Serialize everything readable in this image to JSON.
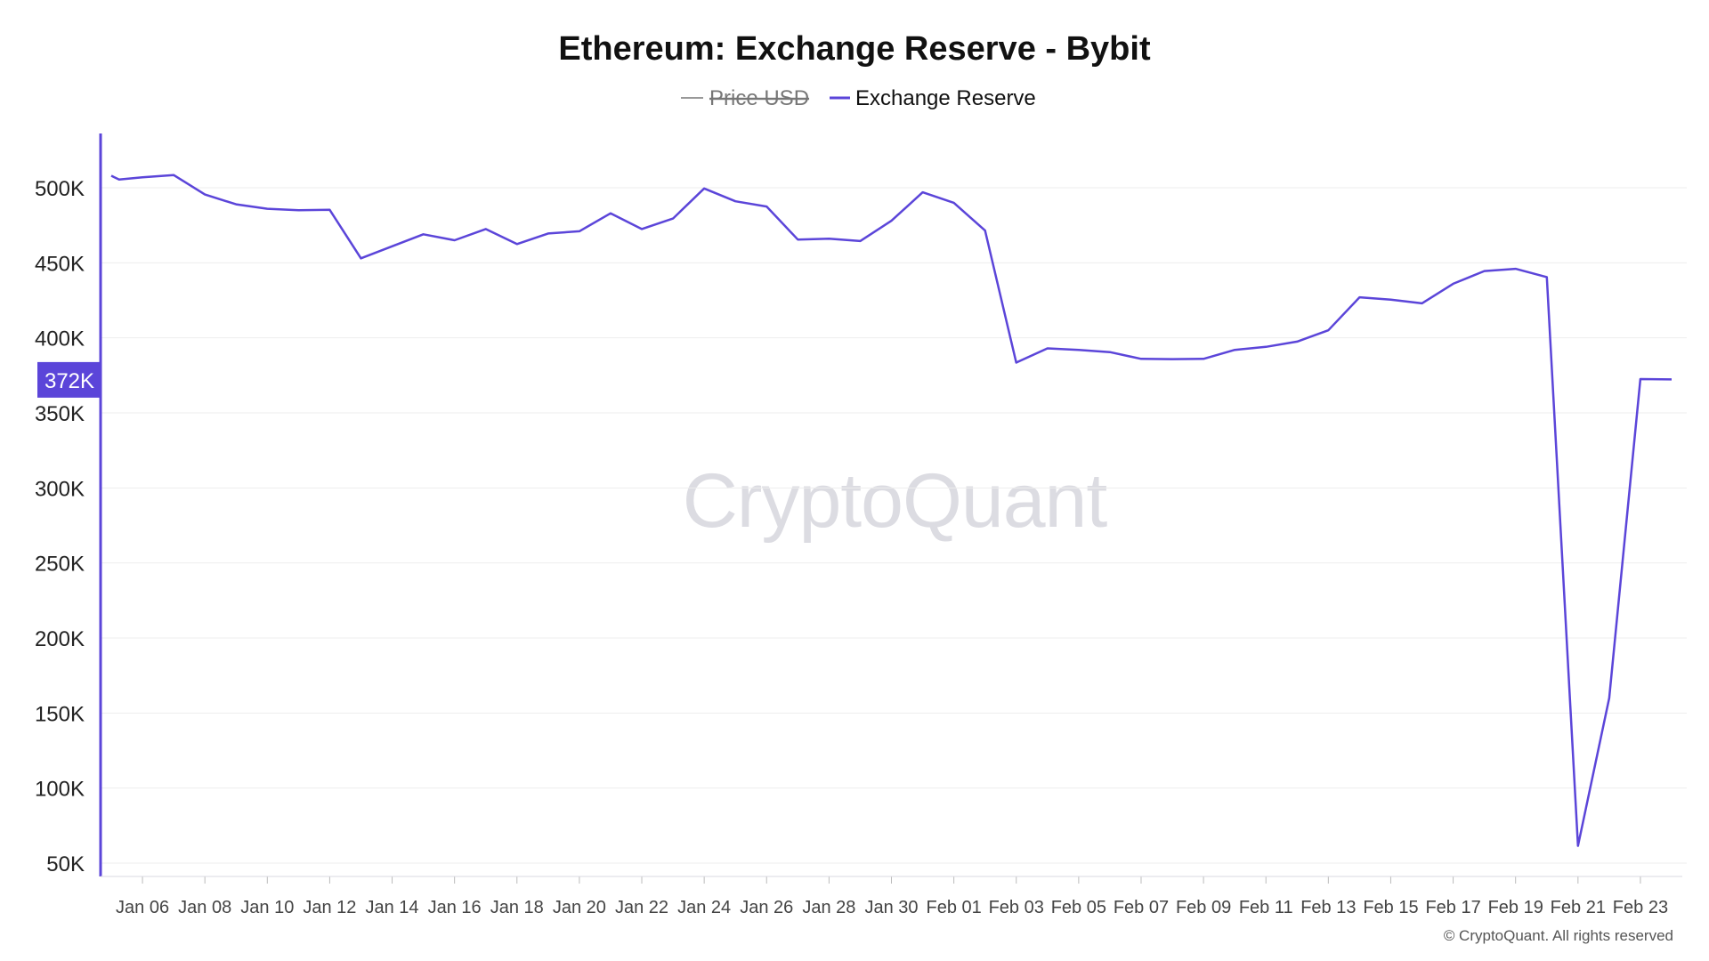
{
  "chart_data": {
    "type": "line",
    "title": "Ethereum: Exchange Reserve - Bybit",
    "legend": [
      {
        "name": "Price USD",
        "color": "#999999",
        "hidden": true
      },
      {
        "name": "Exchange Reserve",
        "color": "#5b45d9",
        "hidden": false
      }
    ],
    "legend_position": "top-center",
    "yticks": [
      {
        "value": 500000,
        "label": "500K"
      },
      {
        "value": 450000,
        "label": "450K"
      },
      {
        "value": 400000,
        "label": "400K"
      },
      {
        "value": 350000,
        "label": "350K"
      },
      {
        "value": 300000,
        "label": "300K"
      },
      {
        "value": 250000,
        "label": "250K"
      },
      {
        "value": 200000,
        "label": "200K"
      },
      {
        "value": 150000,
        "label": "150K"
      },
      {
        "value": 100000,
        "label": "100K"
      },
      {
        "value": 50000,
        "label": "50K"
      }
    ],
    "ylim": [
      40000,
      535000
    ],
    "xlim": [
      "2025-01-05",
      "2025-02-24"
    ],
    "xticks": [
      {
        "date": "2025-01-06",
        "label": "Jan 06"
      },
      {
        "date": "2025-01-08",
        "label": "Jan 08"
      },
      {
        "date": "2025-01-10",
        "label": "Jan 10"
      },
      {
        "date": "2025-01-12",
        "label": "Jan 12"
      },
      {
        "date": "2025-01-14",
        "label": "Jan 14"
      },
      {
        "date": "2025-01-16",
        "label": "Jan 16"
      },
      {
        "date": "2025-01-18",
        "label": "Jan 18"
      },
      {
        "date": "2025-01-20",
        "label": "Jan 20"
      },
      {
        "date": "2025-01-22",
        "label": "Jan 22"
      },
      {
        "date": "2025-01-24",
        "label": "Jan 24"
      },
      {
        "date": "2025-01-26",
        "label": "Jan 26"
      },
      {
        "date": "2025-01-28",
        "label": "Jan 28"
      },
      {
        "date": "2025-01-30",
        "label": "Jan 30"
      },
      {
        "date": "2025-02-01",
        "label": "Feb 01"
      },
      {
        "date": "2025-02-03",
        "label": "Feb 03"
      },
      {
        "date": "2025-02-05",
        "label": "Feb 05"
      },
      {
        "date": "2025-02-07",
        "label": "Feb 07"
      },
      {
        "date": "2025-02-09",
        "label": "Feb 09"
      },
      {
        "date": "2025-02-11",
        "label": "Feb 11"
      },
      {
        "date": "2025-02-13",
        "label": "Feb 13"
      },
      {
        "date": "2025-02-15",
        "label": "Feb 15"
      },
      {
        "date": "2025-02-17",
        "label": "Feb 17"
      },
      {
        "date": "2025-02-19",
        "label": "Feb 19"
      },
      {
        "date": "2025-02-21",
        "label": "Feb 21"
      },
      {
        "date": "2025-02-23",
        "label": "Feb 23"
      }
    ],
    "grid": true,
    "series": [
      {
        "name": "Exchange Reserve",
        "color": "#5b45d9",
        "points": [
          {
            "date": "2025-01-05",
            "value": 508000
          },
          {
            "date": "2025-01-05T06",
            "value": 505500
          },
          {
            "date": "2025-01-06",
            "value": 507000
          },
          {
            "date": "2025-01-07",
            "value": 508500
          },
          {
            "date": "2025-01-08",
            "value": 495500
          },
          {
            "date": "2025-01-09",
            "value": 489000
          },
          {
            "date": "2025-01-10",
            "value": 486000
          },
          {
            "date": "2025-01-11",
            "value": 485000
          },
          {
            "date": "2025-01-12",
            "value": 485300
          },
          {
            "date": "2025-01-13",
            "value": 453000
          },
          {
            "date": "2025-01-14",
            "value": 461000
          },
          {
            "date": "2025-01-15",
            "value": 469000
          },
          {
            "date": "2025-01-16",
            "value": 465000
          },
          {
            "date": "2025-01-17",
            "value": 472500
          },
          {
            "date": "2025-01-18",
            "value": 462500
          },
          {
            "date": "2025-01-19",
            "value": 469500
          },
          {
            "date": "2025-01-20",
            "value": 471000
          },
          {
            "date": "2025-01-21",
            "value": 483000
          },
          {
            "date": "2025-01-22",
            "value": 472500
          },
          {
            "date": "2025-01-23",
            "value": 479500
          },
          {
            "date": "2025-01-24",
            "value": 499500
          },
          {
            "date": "2025-01-25",
            "value": 491000
          },
          {
            "date": "2025-01-26",
            "value": 487500
          },
          {
            "date": "2025-01-27",
            "value": 465500
          },
          {
            "date": "2025-01-28",
            "value": 466000
          },
          {
            "date": "2025-01-29",
            "value": 464500
          },
          {
            "date": "2025-01-30",
            "value": 478000
          },
          {
            "date": "2025-01-31",
            "value": 497000
          },
          {
            "date": "2025-02-01",
            "value": 490000
          },
          {
            "date": "2025-02-02",
            "value": 471500
          },
          {
            "date": "2025-02-03",
            "value": 383500
          },
          {
            "date": "2025-02-04",
            "value": 393000
          },
          {
            "date": "2025-02-05",
            "value": 392000
          },
          {
            "date": "2025-02-06",
            "value": 390500
          },
          {
            "date": "2025-02-07",
            "value": 386000
          },
          {
            "date": "2025-02-08",
            "value": 385800
          },
          {
            "date": "2025-02-09",
            "value": 386000
          },
          {
            "date": "2025-02-10",
            "value": 392000
          },
          {
            "date": "2025-02-11",
            "value": 394000
          },
          {
            "date": "2025-02-12",
            "value": 397500
          },
          {
            "date": "2025-02-13",
            "value": 405000
          },
          {
            "date": "2025-02-14",
            "value": 427000
          },
          {
            "date": "2025-02-15",
            "value": 425500
          },
          {
            "date": "2025-02-16",
            "value": 423000
          },
          {
            "date": "2025-02-17",
            "value": 436000
          },
          {
            "date": "2025-02-18",
            "value": 444500
          },
          {
            "date": "2025-02-19",
            "value": 446000
          },
          {
            "date": "2025-02-20",
            "value": 440500
          },
          {
            "date": "2025-02-21",
            "value": 61500
          },
          {
            "date": "2025-02-22",
            "value": 160000
          },
          {
            "date": "2025-02-23",
            "value": 372500
          },
          {
            "date": "2025-02-24",
            "value": 372300
          }
        ]
      }
    ],
    "current_value_badge": {
      "label": "372K",
      "value": 372000,
      "color": "#5b45d9"
    }
  },
  "watermark": "CryptoQuant",
  "copyright": "© CryptoQuant. All rights reserved"
}
